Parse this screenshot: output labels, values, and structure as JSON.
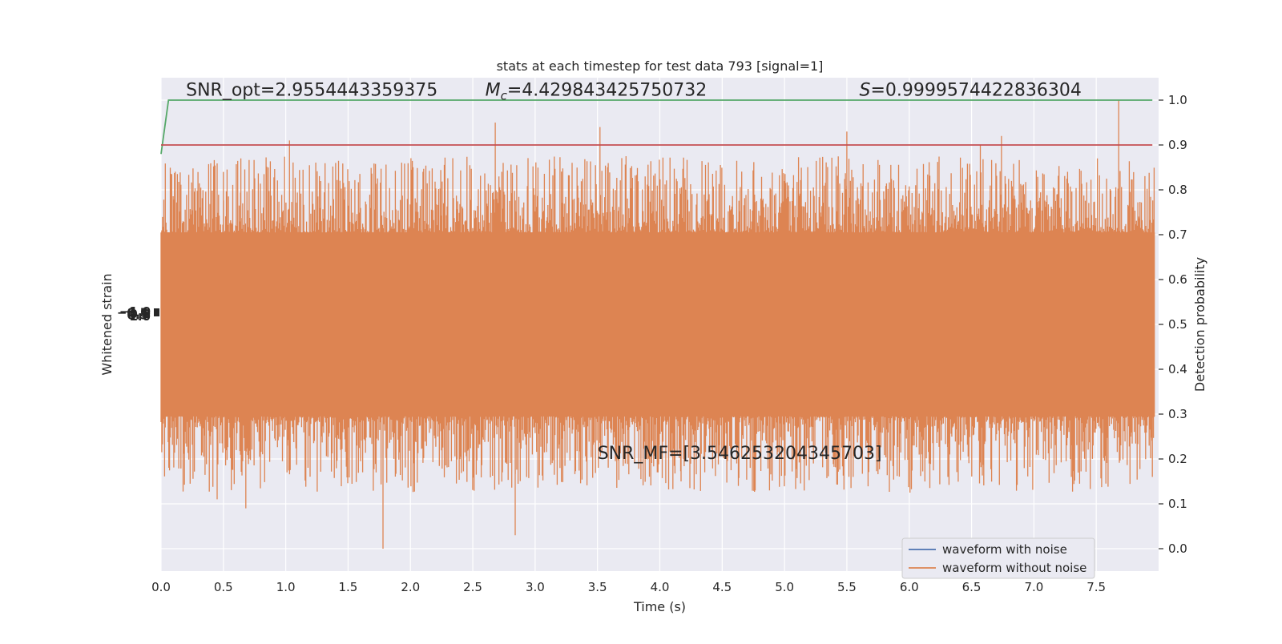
{
  "chart_data": {
    "type": "line",
    "title": "stats at each timestep for test data 793 [signal=1]",
    "xlabel": "Time (s)",
    "ylabel_left": "Whitened strain",
    "ylabel_right": "Detection probability",
    "xlim": [
      0.0,
      8.0
    ],
    "x_ticks": [
      "0.0",
      "0.5",
      "1.0",
      "1.5",
      "2.0",
      "2.5",
      "3.0",
      "3.5",
      "4.0",
      "4.5",
      "5.0",
      "5.5",
      "6.0",
      "6.5",
      "7.0",
      "7.5"
    ],
    "right_ylim": [
      -0.05,
      1.05
    ],
    "right_ticks": [
      "0.0",
      "0.1",
      "0.2",
      "0.3",
      "0.4",
      "0.5",
      "0.6",
      "0.7",
      "0.8",
      "0.9",
      "1.0"
    ],
    "left_tick_labels_overlapping": [
      "−1.0",
      "−0.5",
      "0.0",
      "0.5",
      "1.0"
    ],
    "grid": true,
    "legend_position": "bottom-right",
    "series": [
      {
        "name": "waveform with noise",
        "color": "#4c72b0",
        "visible": false
      },
      {
        "name": "waveform without noise",
        "color": "#dd8452",
        "description_values": {
          "center": 0.5,
          "dense_band": [
            0.295,
            0.705
          ],
          "tall_spikes": [
            {
              "x": 0.5,
              "y": 0.84
            },
            {
              "x": 0.64,
              "y": 0.87
            },
            {
              "x": 1.03,
              "y": 0.91
            },
            {
              "x": 1.4,
              "y": 0.86
            },
            {
              "x": 2.68,
              "y": 0.95
            },
            {
              "x": 3.52,
              "y": 0.94
            },
            {
              "x": 5.5,
              "y": 0.93
            },
            {
              "x": 6.57,
              "y": 0.9
            },
            {
              "x": 6.74,
              "y": 0.92
            },
            {
              "x": 7.68,
              "y": 1.0
            }
          ],
          "low_spikes": [
            {
              "x": 0.45,
              "y": 0.11
            },
            {
              "x": 0.68,
              "y": 0.09
            },
            {
              "x": 1.01,
              "y": 0.17
            },
            {
              "x": 1.78,
              "y": 0.0
            },
            {
              "x": 2.84,
              "y": 0.03
            },
            {
              "x": 4.17,
              "y": 0.15
            },
            {
              "x": 4.63,
              "y": 0.14
            },
            {
              "x": 4.88,
              "y": 0.13
            },
            {
              "x": 6.31,
              "y": 0.16
            },
            {
              "x": 7.3,
              "y": 0.16
            },
            {
              "x": 7.95,
              "y": 0.16
            }
          ]
        }
      },
      {
        "name": "",
        "color": "#55a868",
        "x": [
          0.0,
          0.06,
          7.95
        ],
        "y": [
          0.88,
          1.0,
          1.0
        ]
      },
      {
        "name": "",
        "color": "#c44e52",
        "x": [
          0.0,
          7.95
        ],
        "y": [
          0.9,
          0.9
        ]
      }
    ],
    "annotations": [
      {
        "text": "SNR_opt=2.9554443359375",
        "x": 0.2,
        "y": 1.01
      },
      {
        "text_sym": "M",
        "text_sub": "c",
        "text": "=4.429843425750732",
        "x": 2.6,
        "y": 1.01
      },
      {
        "text_sym": "S",
        "text": "=0.9999574422836304",
        "x": 5.6,
        "y": 1.01
      },
      {
        "text": "SNR_MF=[3.546253204345703]",
        "x": 3.5,
        "y": 0.2
      }
    ]
  }
}
